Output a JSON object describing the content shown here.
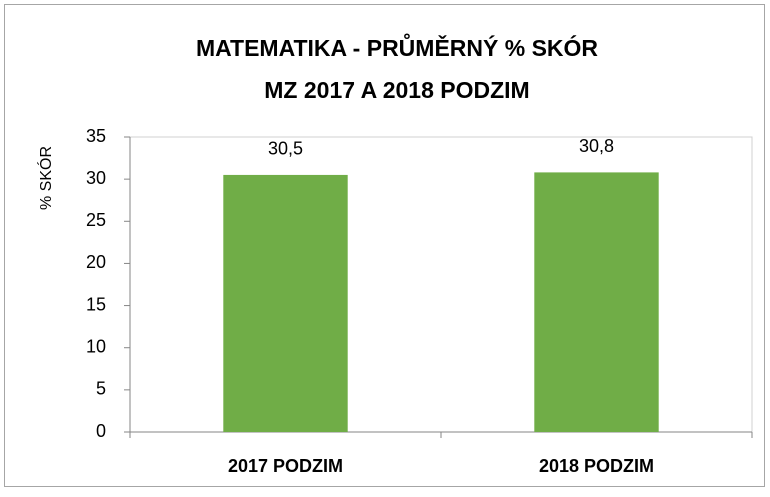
{
  "chart_data": {
    "type": "bar",
    "title": "MATEMATIKA - PRŮMĚRNÝ % SKÓR",
    "subtitle": "MZ 2017 A 2018 PODZIM",
    "y_label": "% SKÓR",
    "categories": [
      "2017 PODZIM",
      "2018 PODZIM"
    ],
    "values": [
      30.5,
      30.8
    ],
    "value_labels": [
      "30,5",
      "30,8"
    ],
    "color": "#70ad47",
    "ylim": [
      0,
      35
    ],
    "yticks": [
      0,
      5,
      10,
      15,
      20,
      25,
      30,
      35
    ],
    "grid": false
  }
}
